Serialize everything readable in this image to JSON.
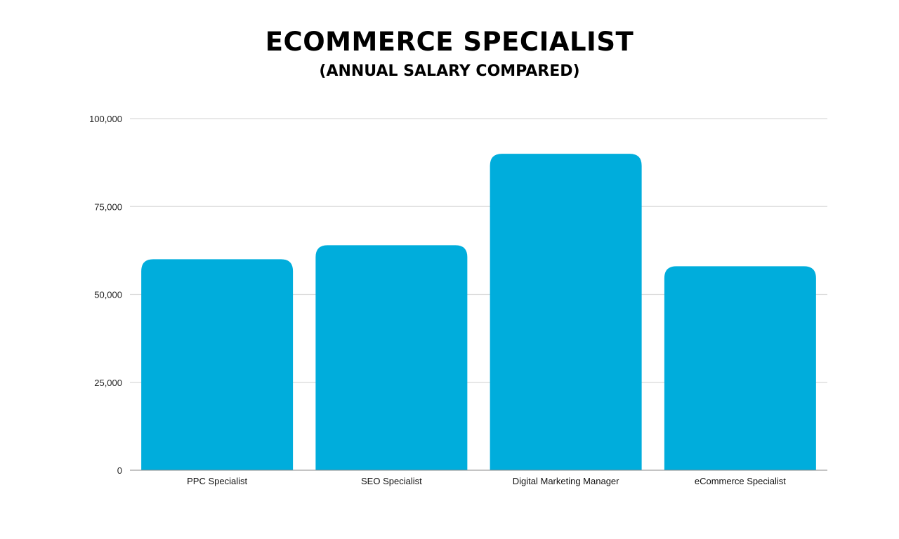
{
  "chart_data": {
    "type": "bar",
    "title": "ECOMMERCE SPECIALIST",
    "subtitle": "(ANNUAL SALARY COMPARED)",
    "xlabel": "",
    "ylabel": "",
    "categories": [
      "PPC Specialist",
      "SEO Specialist",
      "Digital Marketing Manager",
      "eCommerce Specialist"
    ],
    "values": [
      60000,
      64000,
      90000,
      58000
    ],
    "ylim": [
      0,
      100000
    ],
    "yticks": [
      0,
      25000,
      50000,
      75000,
      100000
    ],
    "ytick_labels": [
      "0",
      "25,000",
      "50,000",
      "75,000",
      "100,000"
    ],
    "grid": true,
    "legend": "none",
    "bar_color": "#00ADDC",
    "grid_color": "#D9D9D9",
    "axis_color": "#888888"
  }
}
